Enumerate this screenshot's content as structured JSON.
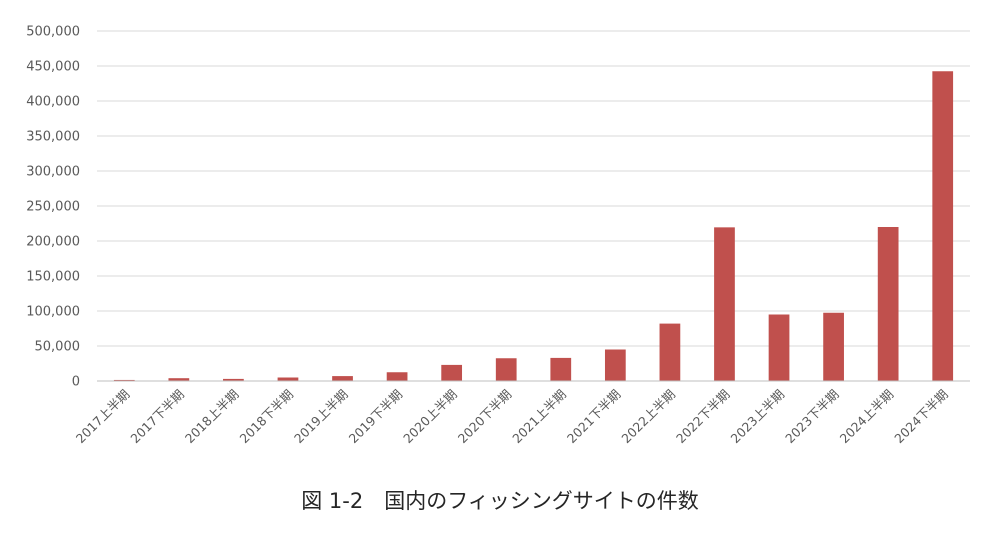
{
  "chart_data": {
    "type": "bar",
    "title": "",
    "xlabel": "",
    "ylabel": "",
    "caption": "図 1-2　国内のフィッシングサイトの件数",
    "categories": [
      "2017上半期",
      "2017下半期",
      "2018上半期",
      "2018下半期",
      "2019上半期",
      "2019下半期",
      "2020上半期",
      "2020下半期",
      "2021上半期",
      "2021下半期",
      "2022上半期",
      "2022下半期",
      "2023上半期",
      "2023下半期",
      "2024上半期",
      "2024下半期"
    ],
    "values": [
      1500,
      4000,
      3000,
      5000,
      7000,
      12500,
      23000,
      32500,
      33000,
      45000,
      82000,
      219500,
      95000,
      97500,
      220000,
      442500
    ],
    "ylim": [
      0,
      500000
    ],
    "yticks": [
      0,
      50000,
      100000,
      150000,
      200000,
      250000,
      300000,
      350000,
      400000,
      450000,
      500000
    ],
    "ytick_labels": [
      "0",
      "50,000",
      "100,000",
      "150,000",
      "200,000",
      "250,000",
      "300,000",
      "350,000",
      "400,000",
      "450,000",
      "500,000"
    ],
    "grid": true,
    "legend": "none",
    "bar_color": "#C0504D",
    "grid_color": "#D9D9D9",
    "axis_color": "#BFBFBF"
  }
}
